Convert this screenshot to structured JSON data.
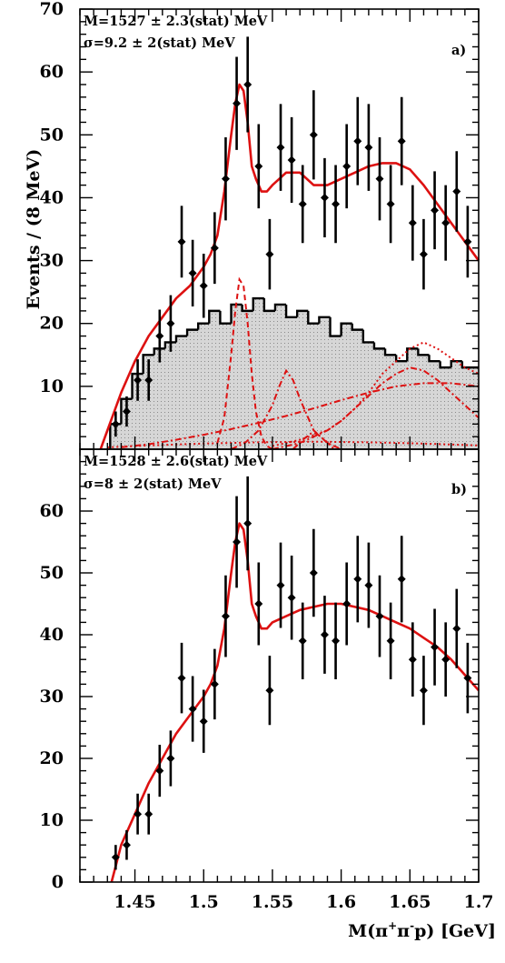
{
  "axes": {
    "ylabel": "Events / (8 MeV)",
    "xlabel_main": "M(π",
    "xlabel_sup1": "+",
    "xlabel_mid": "π",
    "xlabel_sup2": "-",
    "xlabel_end": "p) [GeV]"
  },
  "top_axis_label": "70",
  "colors": {
    "fit": "#dd1111",
    "points": "#000000",
    "hist_fill": "#d4d4d4",
    "hist_line": "#000000"
  },
  "chart_data": [
    {
      "type": "scatter",
      "panel": "a)",
      "annotation_mass": "M=1527 ± 2.3(stat) MeV",
      "annotation_width": "σ=9.2 ± 2(stat) MeV",
      "xlim": [
        1.41,
        1.7
      ],
      "ylim": [
        0,
        70
      ],
      "yticks": [
        70,
        60,
        50,
        40,
        30,
        20,
        10,
        0
      ],
      "ytick_labels_shown": [
        "70",
        "60",
        "50",
        "40",
        "30",
        "20",
        "10"
      ],
      "data": {
        "x": [
          1.436,
          1.444,
          1.452,
          1.46,
          1.468,
          1.476,
          1.484,
          1.492,
          1.5,
          1.508,
          1.516,
          1.524,
          1.532,
          1.54,
          1.548,
          1.556,
          1.564,
          1.572,
          1.58,
          1.588,
          1.596,
          1.604,
          1.612,
          1.62,
          1.628,
          1.636,
          1.644,
          1.652,
          1.66,
          1.668,
          1.676,
          1.684,
          1.692
        ],
        "y": [
          4,
          6,
          11,
          11,
          18,
          20,
          33,
          28,
          26,
          32,
          43,
          55,
          58,
          45,
          31,
          48,
          46,
          39,
          50,
          40,
          39,
          45,
          49,
          48,
          43,
          39,
          49,
          36,
          31,
          38,
          36,
          41,
          33
        ],
        "err": [
          2.0,
          2.4,
          3.3,
          3.3,
          4.2,
          4.5,
          5.7,
          5.3,
          5.1,
          5.7,
          6.6,
          7.4,
          7.6,
          6.7,
          5.6,
          6.9,
          6.8,
          6.2,
          7.1,
          6.3,
          6.2,
          6.7,
          7.0,
          6.9,
          6.6,
          6.2,
          7.0,
          6.0,
          5.6,
          6.2,
          6.0,
          6.4,
          5.7
        ]
      },
      "fit_total": {
        "x": [
          1.425,
          1.43,
          1.44,
          1.45,
          1.46,
          1.47,
          1.48,
          1.49,
          1.5,
          1.505,
          1.51,
          1.515,
          1.52,
          1.523,
          1.526,
          1.529,
          1.532,
          1.535,
          1.538,
          1.542,
          1.546,
          1.55,
          1.555,
          1.56,
          1.57,
          1.58,
          1.59,
          1.6,
          1.61,
          1.62,
          1.63,
          1.64,
          1.65,
          1.66,
          1.67,
          1.68,
          1.69,
          1.7
        ],
        "y": [
          0,
          3,
          9,
          14,
          18,
          21,
          24,
          26,
          29,
          31,
          34,
          41,
          50,
          55,
          58,
          57,
          52,
          45,
          43,
          41,
          41,
          42,
          43,
          44,
          44,
          42,
          42,
          43,
          44,
          45,
          45.5,
          45.5,
          44.5,
          42,
          39,
          36,
          33,
          30
        ]
      },
      "histogram": {
        "bin_edges": [
          1.432,
          1.44,
          1.448,
          1.456,
          1.464,
          1.472,
          1.48,
          1.488,
          1.496,
          1.504,
          1.512,
          1.52,
          1.528,
          1.536,
          1.544,
          1.552,
          1.56,
          1.568,
          1.576,
          1.584,
          1.592,
          1.6,
          1.608,
          1.616,
          1.624,
          1.632,
          1.64,
          1.648,
          1.656,
          1.664,
          1.672,
          1.68,
          1.688,
          1.7
        ],
        "counts": [
          4,
          8,
          12,
          15,
          16,
          17,
          18,
          19,
          20,
          22,
          20,
          23,
          22,
          24,
          22,
          23,
          21,
          22,
          20,
          21,
          18,
          20,
          19,
          17,
          16,
          15,
          14,
          16,
          15,
          14,
          13,
          14,
          13
        ],
        "fill": "#d4d4d4"
      },
      "components": [
        {
          "style": "dashed",
          "x": [
            1.51,
            1.515,
            1.52,
            1.523,
            1.526,
            1.529,
            1.532,
            1.535,
            1.538,
            1.542,
            1.546,
            1.55
          ],
          "y": [
            1,
            5,
            15,
            22,
            27,
            26,
            20,
            12,
            6,
            2,
            0.5,
            0
          ]
        },
        {
          "style": "dashdot",
          "x": [
            1.52,
            1.53,
            1.54,
            1.55,
            1.555,
            1.56,
            1.565,
            1.57,
            1.58,
            1.59,
            1.6
          ],
          "y": [
            0,
            1,
            3,
            7,
            10,
            12.5,
            11,
            8,
            3,
            1,
            0
          ]
        },
        {
          "style": "dashdot",
          "x": [
            1.55,
            1.56,
            1.57,
            1.58,
            1.59,
            1.6,
            1.61,
            1.62,
            1.63,
            1.64,
            1.65,
            1.66,
            1.67,
            1.68,
            1.69,
            1.7
          ],
          "y": [
            0,
            0.5,
            1,
            2,
            3,
            4.5,
            6.5,
            8.5,
            10.5,
            12,
            13,
            12.5,
            11,
            9,
            7,
            5
          ]
        },
        {
          "style": "dotted",
          "x": [
            1.55,
            1.57,
            1.59,
            1.6,
            1.61,
            1.62,
            1.63,
            1.64,
            1.65,
            1.66,
            1.67,
            1.68,
            1.69,
            1.7
          ],
          "y": [
            0.5,
            1.5,
            3,
            4.5,
            6.5,
            9,
            12,
            14,
            16,
            17,
            16,
            14.5,
            13,
            12
          ]
        },
        {
          "style": "dashdot",
          "x": [
            1.44,
            1.46,
            1.48,
            1.5,
            1.52,
            1.54,
            1.56,
            1.58,
            1.6,
            1.62,
            1.64,
            1.66,
            1.68,
            1.7
          ],
          "y": [
            0.3,
            0.8,
            1.5,
            2.3,
            3.2,
            4.2,
            5.3,
            6.5,
            7.8,
            9.0,
            10.0,
            10.5,
            10.5,
            10.0
          ]
        },
        {
          "style": "dotted",
          "x": [
            1.43,
            1.46,
            1.5,
            1.54,
            1.58,
            1.62,
            1.66,
            1.7
          ],
          "y": [
            0.3,
            0.6,
            0.9,
            1.1,
            1.2,
            1.1,
            0.9,
            0.6
          ]
        },
        {
          "style": "dashdot",
          "x": [
            1.565,
            1.572,
            1.578,
            1.582,
            1.588,
            1.595
          ],
          "y": [
            0,
            1.5,
            2.5,
            2.5,
            1.5,
            0
          ]
        }
      ]
    },
    {
      "type": "scatter",
      "panel": "b)",
      "annotation_mass": "M=1528 ± 2.6(stat) MeV",
      "annotation_width": "σ=8 ± 2(stat) MeV",
      "xlim": [
        1.41,
        1.7
      ],
      "ylim": [
        0,
        70
      ],
      "yticks": [
        70,
        60,
        50,
        40,
        30,
        20,
        10,
        0
      ],
      "ytick_labels_shown": [
        "60",
        "50",
        "40",
        "30",
        "20",
        "10",
        "0"
      ],
      "xticks": [
        1.45,
        1.5,
        1.55,
        1.6,
        1.65,
        1.7
      ],
      "xtick_labels": [
        "1.45",
        "1.5",
        "1.55",
        "1.6",
        "1.65",
        "1.7"
      ],
      "data": {
        "x": [
          1.436,
          1.444,
          1.452,
          1.46,
          1.468,
          1.476,
          1.484,
          1.492,
          1.5,
          1.508,
          1.516,
          1.524,
          1.532,
          1.54,
          1.548,
          1.556,
          1.564,
          1.572,
          1.58,
          1.588,
          1.596,
          1.604,
          1.612,
          1.62,
          1.628,
          1.636,
          1.644,
          1.652,
          1.66,
          1.668,
          1.676,
          1.684,
          1.692
        ],
        "y": [
          4,
          6,
          11,
          11,
          18,
          20,
          33,
          28,
          26,
          32,
          43,
          55,
          58,
          45,
          31,
          48,
          46,
          39,
          50,
          40,
          39,
          45,
          49,
          48,
          43,
          39,
          49,
          36,
          31,
          38,
          36,
          41,
          33
        ],
        "err": [
          2.0,
          2.4,
          3.3,
          3.3,
          4.2,
          4.5,
          5.7,
          5.3,
          5.1,
          5.7,
          6.6,
          7.4,
          7.6,
          6.7,
          5.6,
          6.9,
          6.8,
          6.2,
          7.1,
          6.3,
          6.2,
          6.7,
          7.0,
          6.9,
          6.6,
          6.2,
          7.0,
          6.0,
          5.6,
          6.2,
          6.0,
          6.4,
          5.7
        ]
      },
      "fit_total": {
        "x": [
          1.433,
          1.44,
          1.45,
          1.46,
          1.47,
          1.48,
          1.49,
          1.5,
          1.505,
          1.51,
          1.515,
          1.52,
          1.523,
          1.526,
          1.529,
          1.532,
          1.535,
          1.538,
          1.542,
          1.546,
          1.55,
          1.56,
          1.57,
          1.58,
          1.59,
          1.6,
          1.61,
          1.62,
          1.63,
          1.64,
          1.65,
          1.66,
          1.67,
          1.68,
          1.69,
          1.7
        ],
        "y": [
          0,
          6,
          11,
          16,
          20,
          24,
          27,
          30,
          32,
          35,
          41,
          50,
          55,
          58,
          57,
          52,
          45,
          43,
          41,
          41,
          42,
          43,
          44,
          44.5,
          45,
          45,
          44.5,
          44,
          43,
          42,
          41,
          39.5,
          38,
          36,
          33.5,
          31
        ]
      }
    }
  ]
}
